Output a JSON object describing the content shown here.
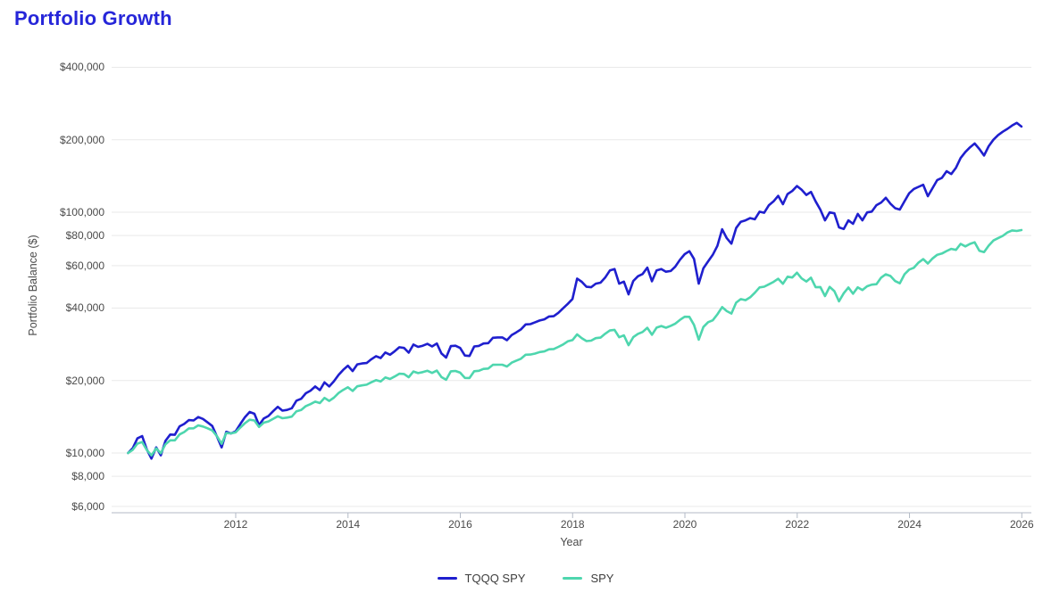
{
  "title": "Portfolio Growth",
  "colors": {
    "title": "#2626d9",
    "tqqq_spy_line": "#1f1fce",
    "spy_line": "#4ed6ae",
    "grid": "#e9e9e9",
    "axis": "#b3bac6",
    "tick_text": "#4a4a4a"
  },
  "legend": {
    "items": [
      {
        "label": "TQQQ SPY",
        "color": "#1f1fce"
      },
      {
        "label": "SPY",
        "color": "#4ed6ae"
      }
    ]
  },
  "chart_data": {
    "type": "line",
    "title": "Portfolio Growth",
    "xlabel": "Year",
    "ylabel": "Portfolio Balance ($)",
    "y_scale": "log",
    "grid": "horizontal",
    "legend_position": "bottom-center",
    "y_ticks": [
      6000,
      8000,
      10000,
      20000,
      40000,
      60000,
      80000,
      100000,
      200000,
      400000
    ],
    "x_ticks": [
      2012,
      2014,
      2016,
      2018,
      2020,
      2022,
      2024,
      2026
    ],
    "x_domain": [
      2009.79,
      2026.17
    ],
    "y_domain": [
      5650,
      456000
    ],
    "x_start": 2010.0833,
    "x_step": 0.0833,
    "x_unit": "monthly, Jan 2010 baseline through Dec 2025",
    "series": [
      {
        "name": "TQQQ SPY",
        "color": "#1f1fce",
        "values": [
          10000,
          10480,
          11500,
          11760,
          10350,
          9480,
          10550,
          9780,
          11230,
          11930,
          11900,
          12900,
          13200,
          13700,
          13650,
          14100,
          13850,
          13400,
          12950,
          11700,
          10550,
          12250,
          12050,
          12300,
          13200,
          14100,
          14800,
          14550,
          13050,
          13900,
          14250,
          14900,
          15550,
          15000,
          15100,
          15350,
          16500,
          16800,
          17700,
          18150,
          18900,
          18250,
          19650,
          18900,
          19850,
          21100,
          22150,
          23050,
          21900,
          23350,
          23550,
          23650,
          24500,
          25250,
          24800,
          26150,
          25600,
          26450,
          27500,
          27300,
          26100,
          28200,
          27600,
          27900,
          28400,
          27700,
          28500,
          25900,
          24900,
          27800,
          27900,
          27300,
          25400,
          25300,
          27700,
          27850,
          28500,
          28600,
          30100,
          30200,
          30200,
          29400,
          30900,
          31700,
          32600,
          34200,
          34300,
          34900,
          35500,
          35900,
          36900,
          37000,
          38200,
          39900,
          41600,
          43600,
          53000,
          51400,
          49000,
          48800,
          50500,
          51000,
          53500,
          57300,
          58100,
          50500,
          51500,
          45600,
          51800,
          54200,
          55400,
          58900,
          51700,
          57300,
          58100,
          56600,
          57000,
          59500,
          63500,
          67000,
          68900,
          64000,
          50500,
          58500,
          62500,
          66500,
          72500,
          85000,
          78000,
          74000,
          86000,
          91300,
          92500,
          94500,
          93500,
          100500,
          99500,
          107000,
          111000,
          117000,
          108000,
          119000,
          122500,
          128500,
          124000,
          118000,
          121500,
          111000,
          102500,
          92500,
          99800,
          99000,
          86500,
          85200,
          92500,
          89500,
          98400,
          92500,
          99800,
          100600,
          107000,
          109700,
          114800,
          108500,
          103900,
          102600,
          111200,
          119900,
          124900,
          127500,
          130000,
          116600,
          126000,
          136000,
          139000,
          148000,
          144000,
          153000,
          168000,
          178000,
          186000,
          193000,
          183000,
          172000,
          188000,
          200000,
          209000,
          216000,
          222000,
          229000,
          235000,
          227000
        ]
      },
      {
        "name": "SPY",
        "color": "#4ed6ae",
        "values": [
          10000,
          10310,
          10940,
          11110,
          10290,
          9770,
          10450,
          9980,
          10870,
          11290,
          11290,
          11940,
          12220,
          12650,
          12660,
          13030,
          12880,
          12670,
          12410,
          11740,
          10920,
          12110,
          12060,
          12190,
          12760,
          13310,
          13740,
          13650,
          12830,
          13360,
          13520,
          13860,
          14210,
          13950,
          14030,
          14160,
          14900,
          15090,
          15660,
          15960,
          16340,
          16120,
          16940,
          16450,
          16970,
          17750,
          18290,
          18750,
          18100,
          18930,
          19090,
          19220,
          19670,
          20080,
          19810,
          20590,
          20300,
          20780,
          21350,
          21290,
          20650,
          21810,
          21470,
          21680,
          21960,
          21500,
          21990,
          20660,
          20140,
          21840,
          21920,
          21570,
          20500,
          20480,
          21860,
          21950,
          22340,
          22420,
          23240,
          23270,
          23270,
          22870,
          23720,
          24200,
          24630,
          25600,
          25630,
          25890,
          26250,
          26420,
          26960,
          27040,
          27580,
          28230,
          29090,
          29440,
          31100,
          29960,
          29150,
          29290,
          29990,
          30160,
          31280,
          32290,
          32470,
          30250,
          30810,
          28030,
          30270,
          31240,
          31810,
          33100,
          30990,
          33170,
          33670,
          33130,
          33750,
          34480,
          35730,
          36810,
          36790,
          34050,
          29570,
          33360,
          34950,
          35570,
          37660,
          40360,
          38830,
          37950,
          42100,
          43580,
          43140,
          44340,
          46280,
          48730,
          49050,
          50190,
          51390,
          52920,
          50460,
          53990,
          53560,
          56070,
          53110,
          51550,
          53460,
          48800,
          48890,
          44860,
          48990,
          47000,
          42650,
          46110,
          48690,
          45880,
          48760,
          47510,
          49260,
          50030,
          50250,
          53500,
          55220,
          54340,
          51750,
          50660,
          55280,
          57800,
          58770,
          61840,
          63840,
          61230,
          64270,
          66570,
          67380,
          69010,
          70440,
          69790,
          73880,
          72130,
          73900,
          75000,
          69100,
          68300,
          72600,
          76300,
          78000,
          79800,
          82400,
          84000,
          83600,
          84300
        ]
      }
    ]
  }
}
